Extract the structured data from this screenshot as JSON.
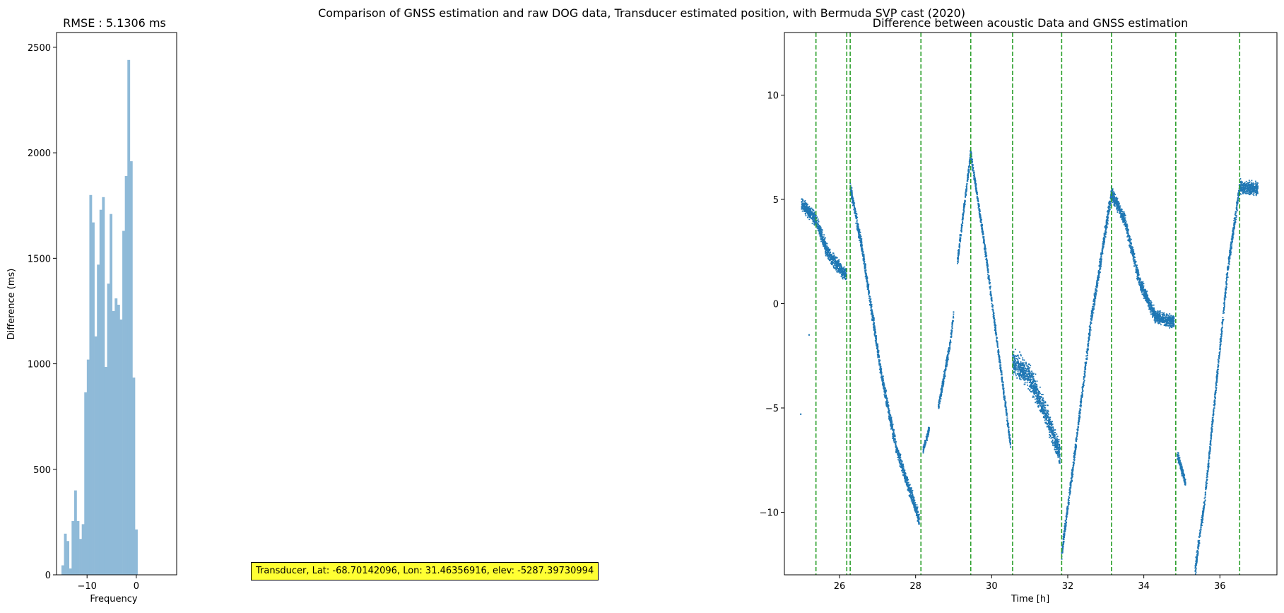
{
  "figure": {
    "suptitle": "Comparison of GNSS estimation and raw DOG data, Transducer estimated position, with Bermuda SVP cast (2020)",
    "annotation": "Transducer, Lat: -68.70142096, Lon: 31.46356916, elev: -5287.39730994",
    "annotation_color": "#ffff33"
  },
  "chart_data": [
    {
      "type": "bar",
      "title": "RMSE : 5.1306 ms",
      "xlabel": "Frequency",
      "ylabel": "Difference (ms)",
      "xlim": [
        -16.2,
        8.2
      ],
      "ylim": [
        0,
        2570
      ],
      "xticks": [
        -10,
        0
      ],
      "xtick_labels": [
        "−10",
        "0"
      ],
      "yticks": [
        0,
        500,
        1000,
        1500,
        2000,
        2500
      ],
      "ytick_labels": [
        "0",
        "500",
        "1000",
        "1500",
        "2000",
        "2500"
      ],
      "bin_start": -15.2,
      "bin_width": 0.515,
      "values": [
        45,
        195,
        160,
        30,
        255,
        400,
        255,
        170,
        240,
        865,
        1020,
        1800,
        1670,
        1130,
        1470,
        1730,
        1790,
        985,
        1380,
        1710,
        1250,
        1310,
        1280,
        1210,
        1630,
        1890,
        2440,
        1960,
        935,
        215
      ],
      "color": "#8fbad8",
      "grid": false
    },
    {
      "type": "scatter",
      "title": "Difference between acoustic Data and GNSS estimation",
      "xlabel": "Time [h]",
      "ylabel": "",
      "xlim": [
        24.55,
        37.5
      ],
      "ylim": [
        -13.0,
        13.0
      ],
      "xticks": [
        26,
        28,
        30,
        32,
        34,
        36
      ],
      "xtick_labels": [
        "26",
        "28",
        "30",
        "32",
        "34",
        "36"
      ],
      "yticks": [
        -10,
        -5,
        0,
        5,
        10
      ],
      "ytick_labels": [
        "−10",
        "−5",
        "0",
        "5",
        "10"
      ],
      "color": "#1f77b4",
      "vlines": [
        25.38,
        26.19,
        26.28,
        28.14,
        29.45,
        30.55,
        31.84,
        33.15,
        34.84,
        36.52
      ],
      "vline_color": "#2ca02c",
      "isolated_points": [
        {
          "x": 24.98,
          "y": -5.3
        },
        {
          "x": 25.2,
          "y": -1.5
        }
      ],
      "segments": [
        {
          "x": [
            25.0,
            25.38,
            25.7,
            26.19
          ],
          "y": [
            4.8,
            4.0,
            2.4,
            1.3
          ],
          "spread": 0.45
        },
        {
          "x": [
            26.28,
            26.6,
            27.1,
            27.5,
            27.9,
            28.1
          ],
          "y": [
            5.6,
            2.6,
            -3.4,
            -7.0,
            -9.2,
            -10.4
          ],
          "spread": 0.45
        },
        {
          "x": [
            28.2,
            28.36
          ],
          "y": [
            -7.0,
            -6.0
          ],
          "spread": 0.25
        },
        {
          "x": [
            28.6,
            28.9,
            29.0
          ],
          "y": [
            -5.0,
            -2.0,
            -0.5
          ],
          "spread": 0.35
        },
        {
          "x": [
            29.1,
            29.45,
            29.8,
            30.2,
            30.5
          ],
          "y": [
            2.0,
            7.2,
            3.0,
            -2.6,
            -6.8
          ],
          "spread": 0.35
        },
        {
          "x": [
            30.55,
            31.0,
            31.4,
            31.8
          ],
          "y": [
            -2.8,
            -3.5,
            -5.2,
            -7.2
          ],
          "spread": 0.8
        },
        {
          "x": [
            31.84,
            32.2,
            32.6,
            33.15,
            33.5,
            33.9,
            34.3,
            34.8
          ],
          "y": [
            -12.0,
            -7.0,
            -1.0,
            5.3,
            4.0,
            1.0,
            -0.6,
            -0.9
          ],
          "spread": 0.45
        },
        {
          "x": [
            34.88,
            35.1
          ],
          "y": [
            -7.2,
            -8.6
          ],
          "spread": 0.35
        },
        {
          "x": [
            35.35,
            35.6,
            35.9,
            36.2,
            36.52,
            37.0
          ],
          "y": [
            -12.8,
            -9.5,
            -4.0,
            1.5,
            5.6,
            5.5
          ],
          "spread": 0.45
        }
      ],
      "grid": false
    }
  ]
}
